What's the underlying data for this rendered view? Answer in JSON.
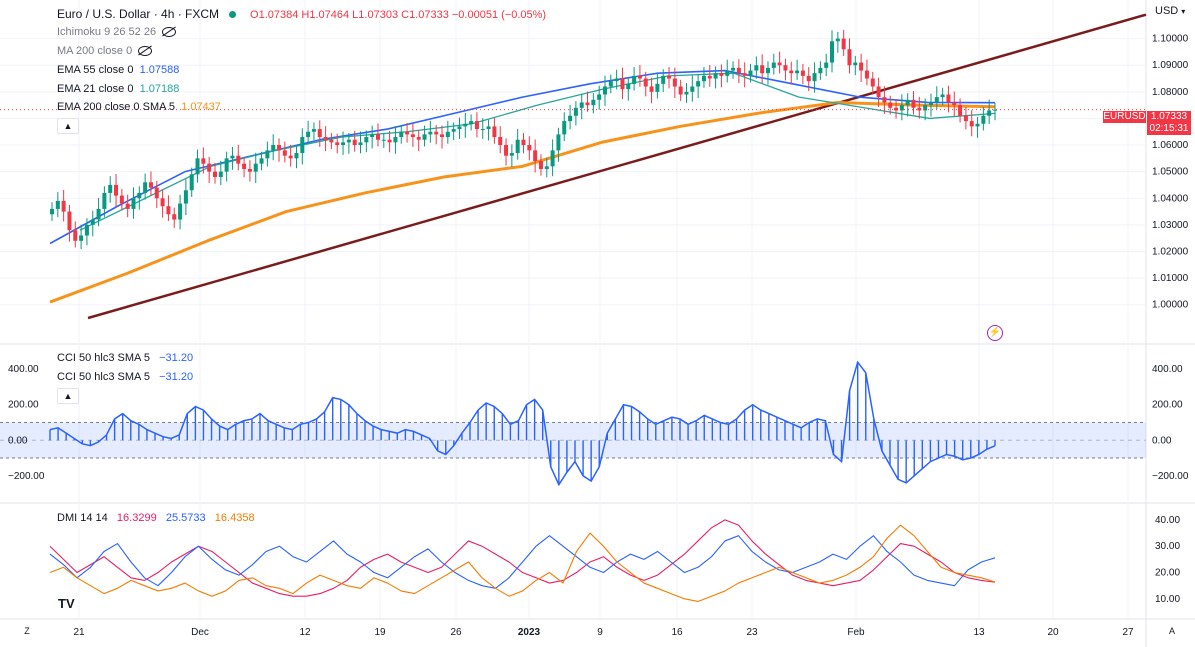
{
  "header": {
    "symbol_title": "Euro / U.S. Dollar · 4h · FXCM",
    "ohlc": "O1.07384 H1.07464 L1.07303 C1.07333 −0.00051 (−0.05%)"
  },
  "price_pane_legend": {
    "ichimoku": "Ichimoku 9 26 52 26",
    "ma200": "MA 200 close 0",
    "ema55_label": "EMA 55 close 0",
    "ema55_value": "1.07588",
    "ema21_label": "EMA 21 close 0",
    "ema21_value": "1.07188",
    "ema200_label": "EMA 200 close 0 SMA 5",
    "ema200_value": "1.07437"
  },
  "cci_pane_legend": {
    "line1_label": "CCI 50 hlc3 SMA 5",
    "line1_value": "−31.20",
    "line2_label": "CCI 50 hlc3 SMA 5",
    "line2_value": "−31.20"
  },
  "dmi_pane_legend": {
    "label": "DMI 14 14",
    "plus_di": "16.3299",
    "minus_di": "25.5733",
    "adx": "16.4358"
  },
  "price_axis": {
    "currency": "USD",
    "symbol_tag": "EURUSD",
    "last_price": "1.07333",
    "countdown": "02:15:31"
  },
  "time_axis_left_button": "Z",
  "time_axis_right_button": "A",
  "logo": "TV",
  "colors": {
    "ema55": "#2962ff",
    "ema21": "#26a69a",
    "ema200": "#f7931a",
    "trendline": "#7b1c1c",
    "candle_up": "#089981",
    "candle_down": "#f23645",
    "cci": "#2962ff",
    "plus_di": "#e91e63",
    "minus_di": "#2962ff",
    "adx": "#f57c00"
  },
  "chart_data": [
    {
      "type": "candlestick",
      "title": "Euro / U.S. Dollar · 4h · FXCM",
      "x_ticks": [
        "21",
        "Dec",
        "12",
        "19",
        "26",
        "2023",
        "9",
        "16",
        "23",
        "Feb",
        "13",
        "20",
        "27"
      ],
      "y_ticks": [
        "1.10000",
        "1.09000",
        "1.08000",
        "1.07000",
        "1.06000",
        "1.05000",
        "1.04000",
        "1.03000",
        "1.02000",
        "1.01000",
        "1.00000"
      ],
      "ylim": [
        0.995,
        1.11
      ],
      "close_series": [
        1.036,
        1.039,
        1.035,
        1.028,
        1.024,
        1.026,
        1.03,
        1.032,
        1.036,
        1.042,
        1.045,
        1.041,
        1.038,
        1.036,
        1.04,
        1.042,
        1.046,
        1.044,
        1.04,
        1.037,
        1.034,
        1.032,
        1.038,
        1.043,
        1.049,
        1.055,
        1.053,
        1.05,
        1.048,
        1.05,
        1.055,
        1.056,
        1.053,
        1.051,
        1.05,
        1.053,
        1.055,
        1.058,
        1.06,
        1.058,
        1.056,
        1.055,
        1.057,
        1.063,
        1.065,
        1.066,
        1.063,
        1.062,
        1.061,
        1.06,
        1.061,
        1.062,
        1.06,
        1.061,
        1.063,
        1.064,
        1.062,
        1.062,
        1.061,
        1.063,
        1.065,
        1.064,
        1.063,
        1.062,
        1.064,
        1.065,
        1.064,
        1.063,
        1.065,
        1.066,
        1.067,
        1.068,
        1.069,
        1.066,
        1.066,
        1.067,
        1.063,
        1.06,
        1.056,
        1.057,
        1.062,
        1.06,
        1.058,
        1.054,
        1.051,
        1.052,
        1.058,
        1.064,
        1.069,
        1.071,
        1.074,
        1.076,
        1.075,
        1.077,
        1.079,
        1.082,
        1.084,
        1.085,
        1.081,
        1.083,
        1.086,
        1.085,
        1.082,
        1.08,
        1.083,
        1.086,
        1.085,
        1.082,
        1.079,
        1.08,
        1.082,
        1.084,
        1.086,
        1.085,
        1.087,
        1.086,
        1.088,
        1.089,
        1.087,
        1.086,
        1.088,
        1.09,
        1.087,
        1.089,
        1.091,
        1.09,
        1.088,
        1.087,
        1.088,
        1.086,
        1.084,
        1.087,
        1.089,
        1.091,
        1.099,
        1.1,
        1.096,
        1.09,
        1.091,
        1.088,
        1.085,
        1.082,
        1.078,
        1.076,
        1.074,
        1.073,
        1.075,
        1.077,
        1.074,
        1.073,
        1.075,
        1.076,
        1.078,
        1.079,
        1.076,
        1.075,
        1.071,
        1.069,
        1.067,
        1.068,
        1.071,
        1.073,
        1.0733
      ],
      "ema55": [
        1.023,
        1.037,
        1.05,
        1.056,
        1.062,
        1.066,
        1.072,
        1.078,
        1.083,
        1.087,
        1.088,
        1.083,
        1.078,
        1.076,
        1.0759
      ],
      "ema21": [
        1.028,
        1.04,
        1.052,
        1.058,
        1.063,
        1.065,
        1.068,
        1.075,
        1.081,
        1.086,
        1.087,
        1.078,
        1.074,
        1.07,
        1.0719
      ],
      "ema200": [
        1.001,
        1.012,
        1.024,
        1.035,
        1.042,
        1.048,
        1.052,
        1.061,
        1.067,
        1.072,
        1.076,
        1.075,
        1.0744
      ],
      "trendline": {
        "from": [
          "Nov 18",
          0.995
        ],
        "to": [
          "Feb 28",
          1.109
        ]
      }
    },
    {
      "type": "bar",
      "title": "CCI 50 hlc3 SMA 5",
      "y_ticks": [
        "400.00",
        "200.00",
        "0.00",
        "−200.00"
      ],
      "ylim": [
        -280,
        480
      ],
      "band": [
        -100,
        100
      ],
      "values": [
        60,
        70,
        40,
        10,
        -20,
        -30,
        -10,
        30,
        120,
        150,
        110,
        90,
        60,
        40,
        20,
        10,
        30,
        150,
        190,
        170,
        120,
        80,
        60,
        90,
        110,
        120,
        150,
        110,
        90,
        70,
        60,
        90,
        100,
        120,
        160,
        240,
        230,
        200,
        150,
        110,
        80,
        60,
        50,
        40,
        60,
        50,
        30,
        10,
        -60,
        -80,
        -30,
        40,
        100,
        170,
        210,
        190,
        150,
        90,
        110,
        200,
        230,
        170,
        -150,
        -250,
        -180,
        -120,
        -200,
        -230,
        -150,
        40,
        120,
        200,
        190,
        160,
        120,
        90,
        110,
        130,
        120,
        90,
        110,
        140,
        120,
        100,
        90,
        120,
        170,
        200,
        170,
        150,
        130,
        110,
        90,
        70,
        100,
        120,
        110,
        -80,
        -120,
        280,
        440,
        380,
        120,
        -60,
        -140,
        -220,
        -240,
        -200,
        -160,
        -120,
        -100,
        -80,
        -90,
        -110,
        -100,
        -80,
        -50,
        -31
      ]
    },
    {
      "type": "line",
      "title": "DMI 14 14",
      "y_ticks": [
        "40.00",
        "30.00",
        "20.00",
        "10.00"
      ],
      "ylim": [
        5,
        43
      ],
      "series": [
        {
          "name": "16.3299",
          "values": [
            30,
            25,
            20,
            23,
            26,
            22,
            18,
            17,
            20,
            24,
            27,
            30,
            28,
            24,
            20,
            16,
            14,
            12,
            11,
            11,
            12,
            14,
            17,
            22,
            25,
            27,
            24,
            22,
            20,
            22,
            27,
            32,
            30,
            27,
            24,
            20,
            18,
            16,
            17,
            20,
            24,
            26,
            22,
            19,
            17,
            19,
            23,
            27,
            32,
            37,
            40,
            38,
            32,
            27,
            23,
            19,
            17,
            16,
            15,
            16,
            17,
            21,
            26,
            31,
            30,
            27,
            24,
            20,
            18,
            17,
            16.3
          ]
        },
        {
          "name": "25.5733",
          "values": [
            27,
            23,
            18,
            22,
            28,
            31,
            24,
            18,
            15,
            20,
            26,
            30,
            25,
            21,
            19,
            23,
            28,
            30,
            26,
            24,
            28,
            32,
            27,
            24,
            20,
            18,
            22,
            26,
            29,
            24,
            20,
            17,
            15,
            14,
            18,
            24,
            30,
            34,
            30,
            26,
            22,
            20,
            24,
            27,
            25,
            28,
            24,
            20,
            22,
            26,
            32,
            34,
            28,
            24,
            21,
            20,
            22,
            24,
            27,
            25,
            30,
            34,
            28,
            24,
            19,
            17,
            16,
            15,
            21,
            24,
            25.6
          ]
        },
        {
          "name": "16.4358",
          "values": [
            20,
            22,
            18,
            15,
            12,
            14,
            17,
            15,
            13,
            14,
            16,
            13,
            11,
            13,
            17,
            18,
            15,
            14,
            12,
            16,
            19,
            17,
            15,
            14,
            18,
            16,
            13,
            12,
            15,
            18,
            21,
            24,
            18,
            14,
            11,
            13,
            17,
            20,
            16,
            28,
            35,
            30,
            24,
            20,
            16,
            14,
            12,
            10,
            9,
            11,
            13,
            16,
            18,
            20,
            22,
            20,
            18,
            16,
            17,
            19,
            22,
            26,
            33,
            38,
            34,
            28,
            22,
            20,
            19,
            18,
            16.4
          ]
        }
      ]
    }
  ]
}
